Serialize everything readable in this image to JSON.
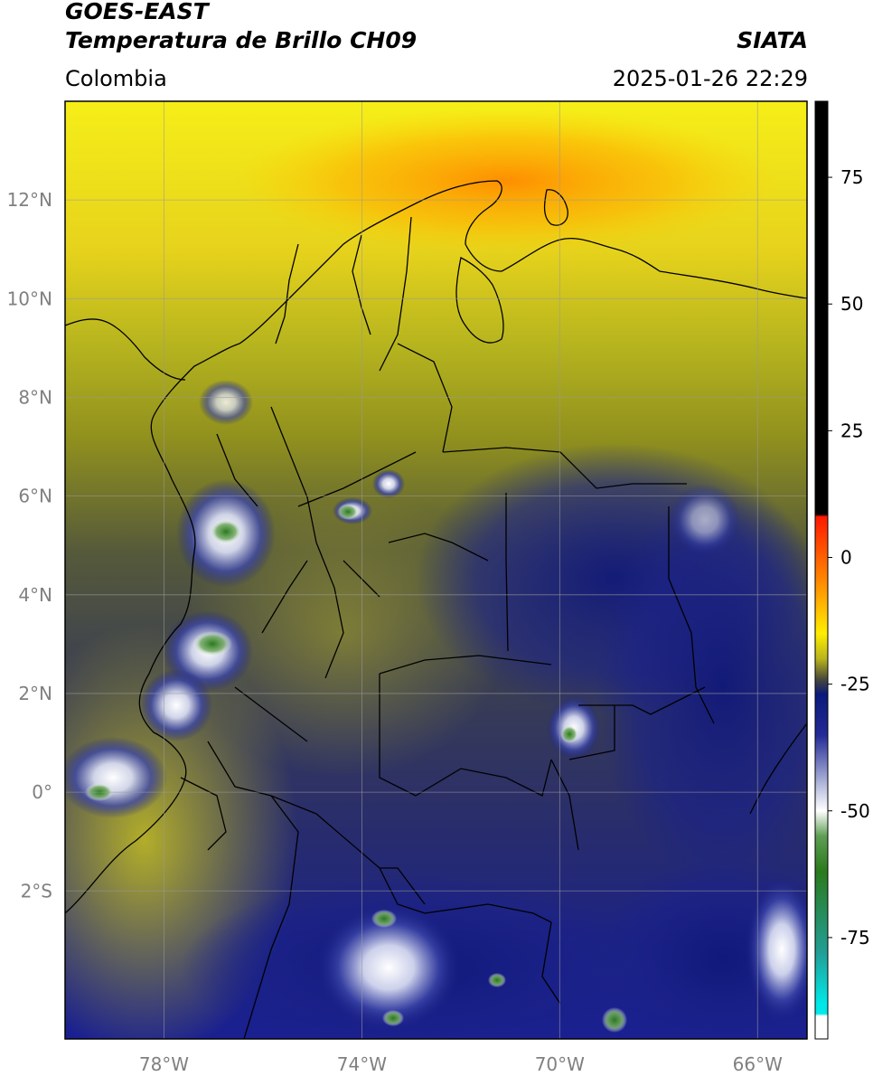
{
  "header": {
    "satellite": "GOES-EAST",
    "product": "Temperatura de Brillo CH09",
    "org": "SIATA",
    "region": "Colombia",
    "datetime": "2025-01-26 22:29"
  },
  "map": {
    "lon_range": [
      -80,
      -65
    ],
    "lat_range": [
      -5,
      14
    ],
    "x_ticks": [
      {
        "value": -78,
        "label": "78°W"
      },
      {
        "value": -74,
        "label": "74°W"
      },
      {
        "value": -70,
        "label": "70°W"
      },
      {
        "value": -66,
        "label": "66°W"
      }
    ],
    "y_ticks": [
      {
        "value": 12,
        "label": "12°N"
      },
      {
        "value": 10,
        "label": "10°N"
      },
      {
        "value": 8,
        "label": "8°N"
      },
      {
        "value": 6,
        "label": "6°N"
      },
      {
        "value": 4,
        "label": "4°N"
      },
      {
        "value": 2,
        "label": "2°N"
      },
      {
        "value": 0,
        "label": "0°"
      },
      {
        "value": -2,
        "label": "2°S"
      }
    ],
    "gridlines": true
  },
  "colorbar": {
    "range": [
      -95,
      90
    ],
    "ticks": [
      {
        "value": 75,
        "label": "75"
      },
      {
        "value": 50,
        "label": "50"
      },
      {
        "value": 25,
        "label": "25"
      },
      {
        "value": 0,
        "label": "0"
      },
      {
        "value": -25,
        "label": "-25"
      },
      {
        "value": -50,
        "label": "-50"
      },
      {
        "value": -75,
        "label": "-75"
      }
    ],
    "stops": [
      {
        "value": 90,
        "color": "#000000"
      },
      {
        "value": 8.5,
        "color": "#000000"
      },
      {
        "value": 8,
        "color": "#ff1a00"
      },
      {
        "value": -5,
        "color": "#ff8c00"
      },
      {
        "value": -15,
        "color": "#ffee00"
      },
      {
        "value": -20,
        "color": "#b8b41c"
      },
      {
        "value": -24,
        "color": "#4a4a3a"
      },
      {
        "value": -27,
        "color": "#0a1a7a"
      },
      {
        "value": -35,
        "color": "#232a96"
      },
      {
        "value": -45,
        "color": "#b6bcdc"
      },
      {
        "value": -50,
        "color": "#ffffff"
      },
      {
        "value": -55,
        "color": "#5e9e54"
      },
      {
        "value": -62,
        "color": "#2a7a1c"
      },
      {
        "value": -78,
        "color": "#229e96"
      },
      {
        "value": -88,
        "color": "#00e8e8"
      },
      {
        "value": -90,
        "color": "#00e8e8"
      },
      {
        "value": -90.5,
        "color": "#ffffff"
      },
      {
        "value": -95,
        "color": "#ffffff"
      }
    ]
  }
}
